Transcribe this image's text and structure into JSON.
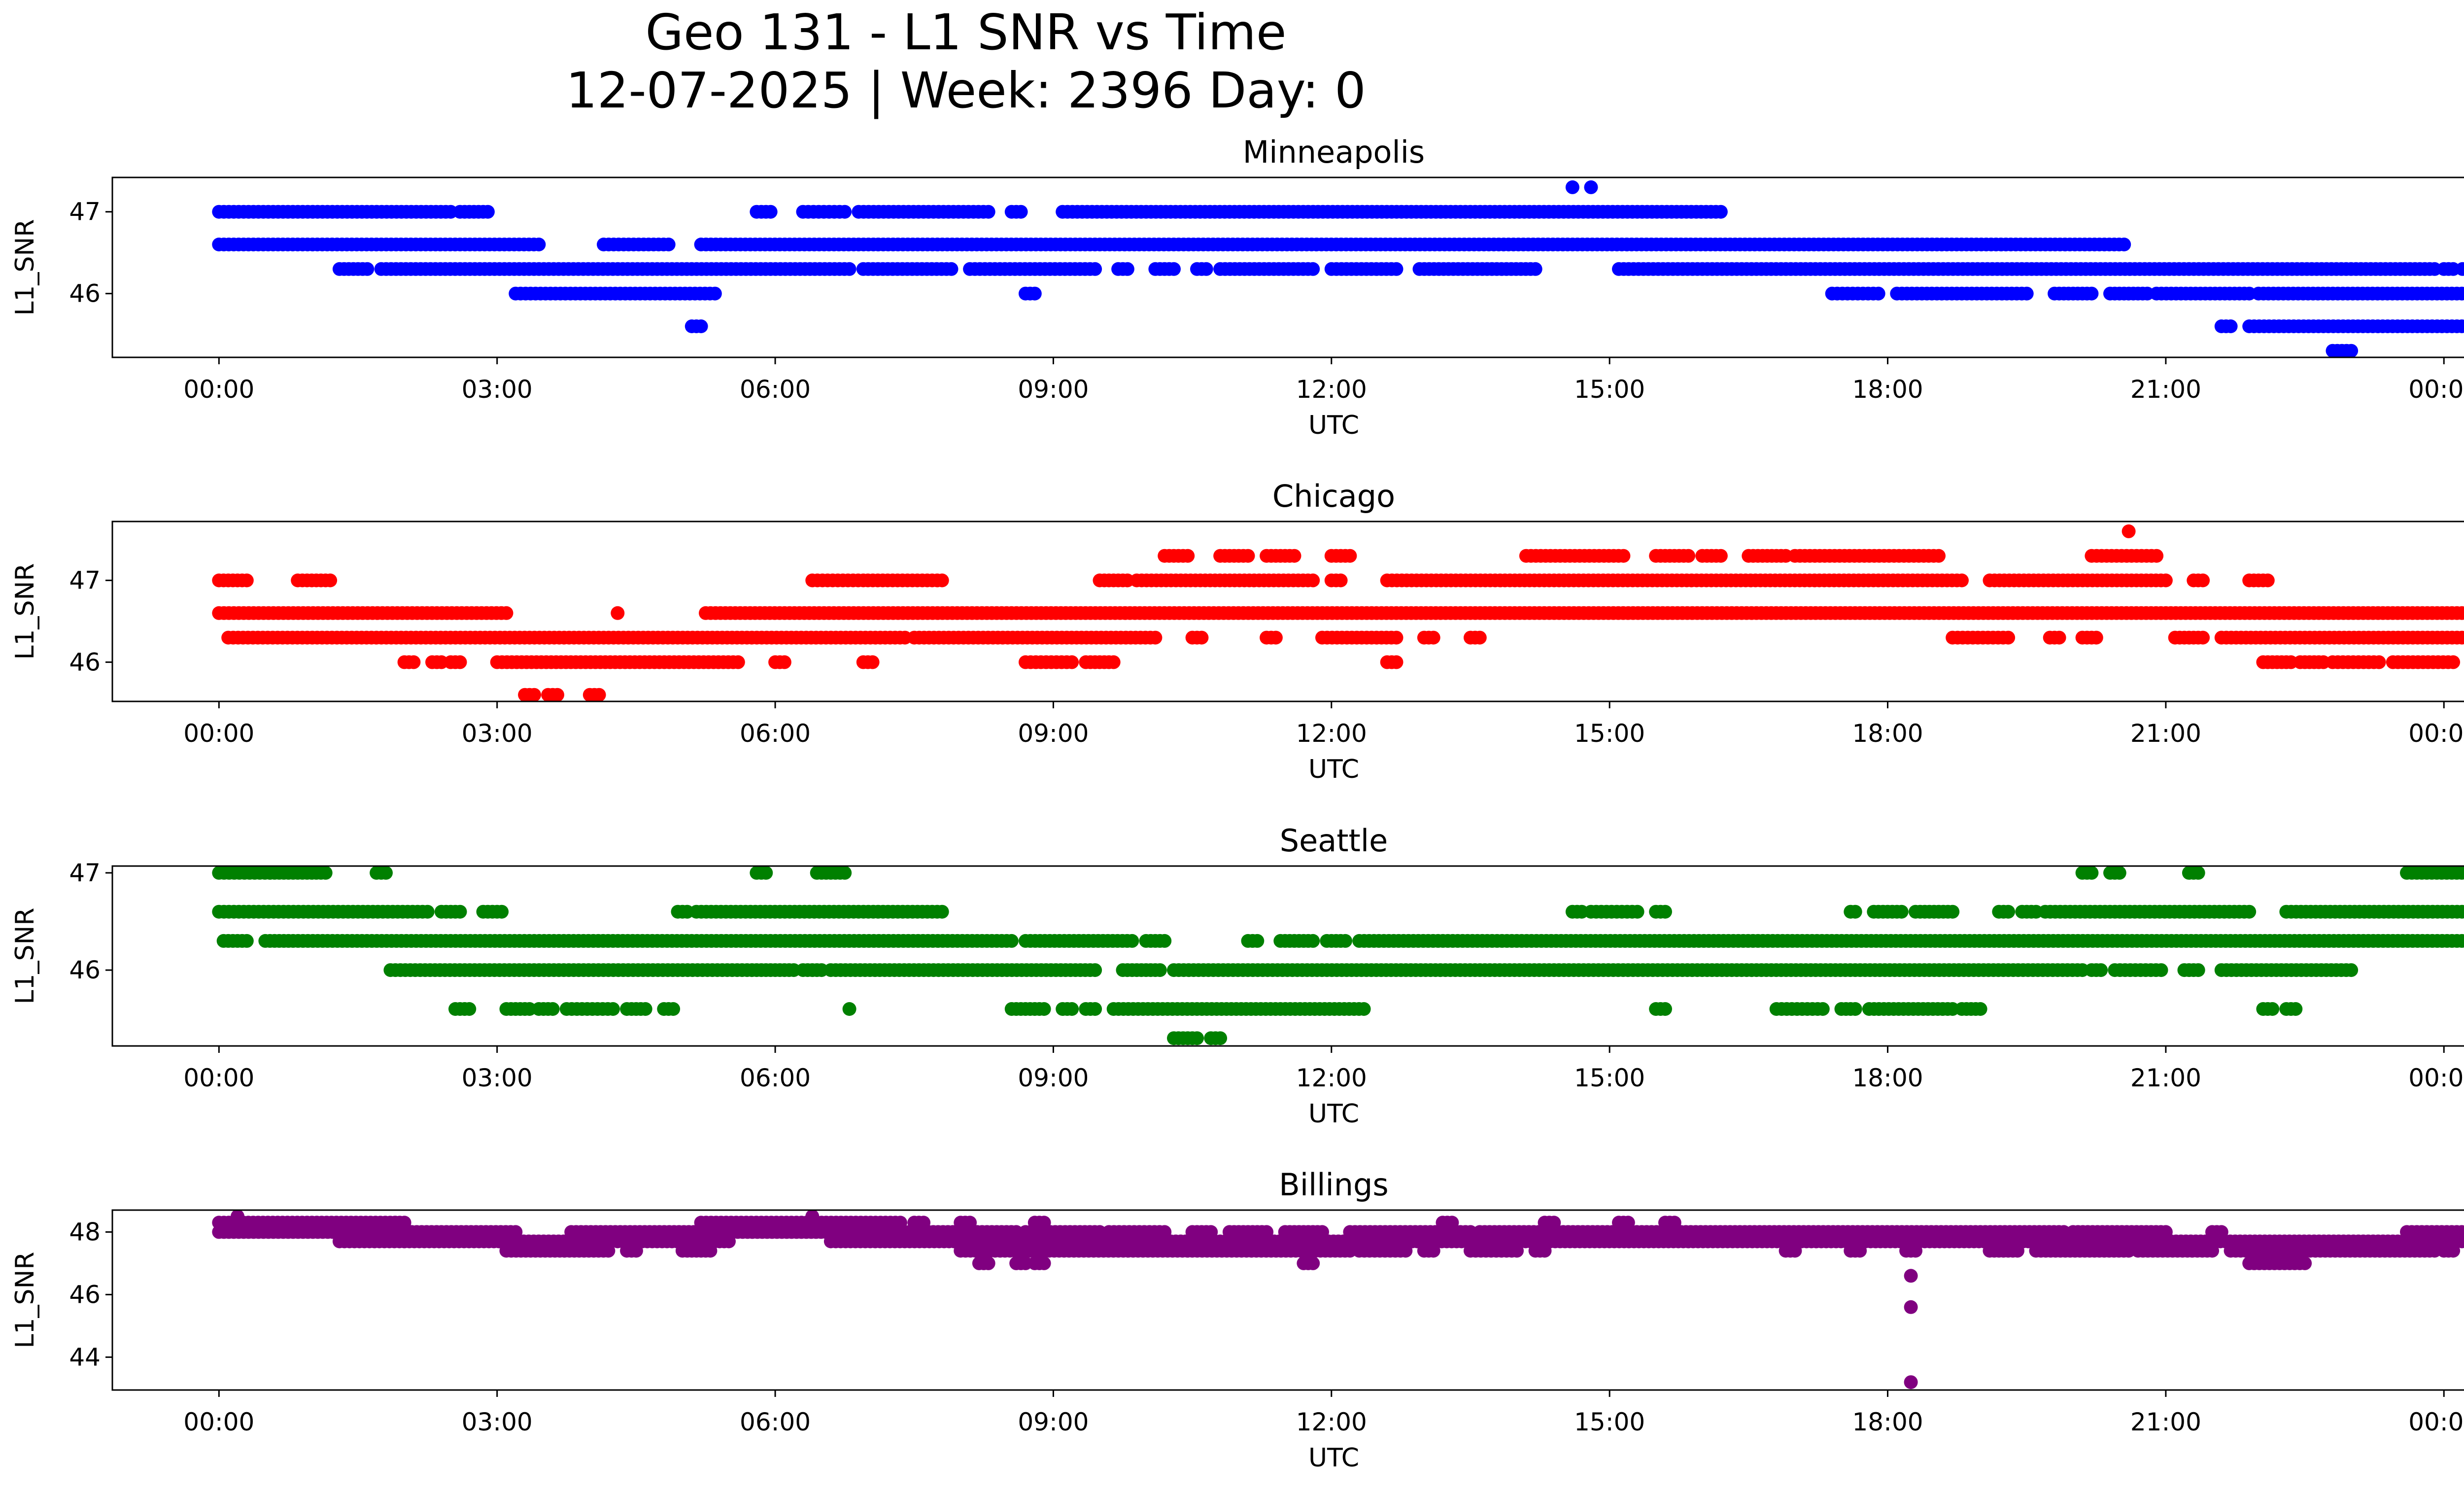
{
  "figure": {
    "title_line1": "Geo 131 - L1 SNR vs Time",
    "title_line2": "12-07-2025 | Week: 2396 Day: 0"
  },
  "chart_data": [
    {
      "type": "scatter",
      "title": "Minneapolis",
      "xlabel": "UTC",
      "ylabel": "L1_SNR",
      "color": "#0000ff",
      "x_tick_labels": [
        "00:00",
        "03:00",
        "06:00",
        "09:00",
        "12:00",
        "15:00",
        "18:00",
        "21:00",
        "00:00"
      ],
      "x_range_hours": [
        -1.15,
        25.2
      ],
      "yticks": [
        46,
        47
      ],
      "ylim": [
        45.22,
        47.42
      ],
      "bands": [
        {
          "y": 47.0,
          "segments": [
            [
              0.0,
              2.5
            ],
            [
              2.6,
              2.9
            ],
            [
              5.8,
              5.95
            ],
            [
              6.3,
              6.75
            ],
            [
              6.9,
              8.3
            ],
            [
              8.55,
              8.65
            ],
            [
              9.1,
              16.2
            ]
          ]
        },
        {
          "y": 46.6,
          "segments": [
            [
              0.0,
              3.45
            ],
            [
              4.15,
              4.85
            ],
            [
              5.2,
              20.55
            ]
          ]
        },
        {
          "y": 46.3,
          "segments": [
            [
              1.3,
              1.6
            ],
            [
              1.75,
              6.8
            ],
            [
              6.95,
              7.9
            ],
            [
              8.1,
              9.45
            ],
            [
              9.7,
              9.8
            ],
            [
              10.1,
              10.3
            ],
            [
              10.55,
              10.65
            ],
            [
              10.8,
              11.8
            ],
            [
              12.0,
              12.7
            ],
            [
              12.95,
              14.2
            ],
            [
              15.1,
              23.9
            ],
            [
              24.0,
              24.1
            ],
            [
              24.2,
              24.3
            ]
          ]
        },
        {
          "y": 46.0,
          "segments": [
            [
              3.2,
              5.35
            ],
            [
              8.7,
              8.8
            ],
            [
              17.4,
              17.9
            ],
            [
              18.1,
              19.5
            ],
            [
              19.8,
              20.2
            ],
            [
              20.4,
              20.8
            ],
            [
              20.9,
              21.9
            ],
            [
              22.0,
              24.3
            ]
          ]
        },
        {
          "y": 45.6,
          "segments": [
            [
              5.1,
              5.2
            ],
            [
              21.6,
              21.7
            ],
            [
              21.9,
              24.3
            ]
          ]
        },
        {
          "y": 45.3,
          "segments": [
            [
              22.8,
              23.0
            ]
          ]
        }
      ],
      "points": [
        {
          "x": 14.6,
          "y": 47.3
        },
        {
          "x": 14.8,
          "y": 47.3
        }
      ]
    },
    {
      "type": "scatter",
      "title": "Chicago",
      "xlabel": "UTC",
      "ylabel": "L1_SNR",
      "color": "#ff0000",
      "x_tick_labels": [
        "00:00",
        "03:00",
        "06:00",
        "09:00",
        "12:00",
        "15:00",
        "18:00",
        "21:00",
        "00:00"
      ],
      "x_range_hours": [
        -1.15,
        25.2
      ],
      "yticks": [
        46,
        47
      ],
      "ylim": [
        45.52,
        47.72
      ],
      "bands": [
        {
          "y": 47.3,
          "segments": [
            [
              10.2,
              10.45
            ],
            [
              10.8,
              11.1
            ],
            [
              11.3,
              11.6
            ],
            [
              12.0,
              12.2
            ],
            [
              14.1,
              15.15
            ],
            [
              15.5,
              15.85
            ],
            [
              16.0,
              16.2
            ],
            [
              16.5,
              16.9
            ],
            [
              17.0,
              18.55
            ],
            [
              20.2,
              20.9
            ]
          ]
        },
        {
          "y": 47.0,
          "segments": [
            [
              0.0,
              0.3
            ],
            [
              0.85,
              1.2
            ],
            [
              6.4,
              6.95
            ],
            [
              7.0,
              7.8
            ],
            [
              9.5,
              9.8
            ],
            [
              9.9,
              11.8
            ],
            [
              12.0,
              12.1
            ],
            [
              12.6,
              18.8
            ],
            [
              19.1,
              21.0
            ],
            [
              21.3,
              21.4
            ],
            [
              21.9,
              22.1
            ]
          ]
        },
        {
          "y": 46.6,
          "segments": [
            [
              0.0,
              3.1
            ],
            [
              5.25,
              24.3
            ]
          ]
        },
        {
          "y": 46.3,
          "segments": [
            [
              0.1,
              7.4
            ],
            [
              7.5,
              10.1
            ],
            [
              10.5,
              10.6
            ],
            [
              11.3,
              11.4
            ],
            [
              11.9,
              12.7
            ],
            [
              13.0,
              13.1
            ],
            [
              13.5,
              13.6
            ],
            [
              18.7,
              19.3
            ],
            [
              19.75,
              19.85
            ],
            [
              20.1,
              20.25
            ],
            [
              21.1,
              21.4
            ],
            [
              21.6,
              24.3
            ]
          ]
        },
        {
          "y": 46.0,
          "segments": [
            [
              2.0,
              2.1
            ],
            [
              2.3,
              2.4
            ],
            [
              2.5,
              2.6
            ],
            [
              3.0,
              5.6
            ],
            [
              6.0,
              6.1
            ],
            [
              6.95,
              7.05
            ],
            [
              8.7,
              9.2
            ],
            [
              9.35,
              9.65
            ],
            [
              12.6,
              12.7
            ],
            [
              22.05,
              22.35
            ],
            [
              22.45,
              22.7
            ],
            [
              22.8,
              23.3
            ],
            [
              23.45,
              24.1
            ]
          ]
        },
        {
          "y": 45.6,
          "segments": [
            [
              3.3,
              3.4
            ],
            [
              3.55,
              3.65
            ],
            [
              4.0,
              4.1
            ]
          ]
        }
      ],
      "points": [
        {
          "x": 4.3,
          "y": 46.6
        },
        {
          "x": 20.6,
          "y": 47.6
        }
      ]
    },
    {
      "type": "scatter",
      "title": "Seattle",
      "xlabel": "UTC",
      "ylabel": "L1_SNR",
      "color": "#008000",
      "x_tick_labels": [
        "00:00",
        "03:00",
        "06:00",
        "09:00",
        "12:00",
        "15:00",
        "18:00",
        "21:00",
        "00:00"
      ],
      "x_range_hours": [
        -1.15,
        25.2
      ],
      "yticks": [
        46,
        47
      ],
      "ylim": [
        45.22,
        47.07
      ],
      "bands": [
        {
          "y": 47.0,
          "segments": [
            [
              0.0,
              0.55
            ],
            [
              0.55,
              0.85
            ],
            [
              0.9,
              1.15
            ],
            [
              1.7,
              1.8
            ],
            [
              5.8,
              5.9
            ],
            [
              6.45,
              6.75
            ],
            [
              20.1,
              20.2
            ],
            [
              20.4,
              20.5
            ],
            [
              21.25,
              21.35
            ],
            [
              23.6,
              24.3
            ]
          ]
        },
        {
          "y": 46.6,
          "segments": [
            [
              0.0,
              2.25
            ],
            [
              2.4,
              2.6
            ],
            [
              2.85,
              3.05
            ],
            [
              4.95,
              5.05
            ],
            [
              5.15,
              7.8
            ],
            [
              14.6,
              14.7
            ],
            [
              14.8,
              15.3
            ],
            [
              15.5,
              15.6
            ],
            [
              17.6,
              17.65
            ],
            [
              17.85,
              18.15
            ],
            [
              18.3,
              18.7
            ],
            [
              19.2,
              19.3
            ],
            [
              19.45,
              19.6
            ],
            [
              19.7,
              21.9
            ],
            [
              22.3,
              24.3
            ]
          ]
        },
        {
          "y": 46.3,
          "segments": [
            [
              0.05,
              0.3
            ],
            [
              0.5,
              0.75
            ],
            [
              0.8,
              8.55
            ],
            [
              8.7,
              9.85
            ],
            [
              10.0,
              10.2
            ],
            [
              11.1,
              11.2
            ],
            [
              11.45,
              11.8
            ],
            [
              11.95,
              12.15
            ],
            [
              12.3,
              24.3
            ]
          ]
        },
        {
          "y": 46.0,
          "segments": [
            [
              1.85,
              5.75
            ],
            [
              5.8,
              6.2
            ],
            [
              6.3,
              6.5
            ],
            [
              6.6,
              9.45
            ],
            [
              9.75,
              10.15
            ],
            [
              10.3,
              20.1
            ],
            [
              20.2,
              20.3
            ],
            [
              20.45,
              20.95
            ],
            [
              21.2,
              21.35
            ],
            [
              21.6,
              23.0
            ]
          ]
        },
        {
          "y": 45.6,
          "segments": [
            [
              2.55,
              2.7
            ],
            [
              3.1,
              3.35
            ],
            [
              3.45,
              3.6
            ],
            [
              3.75,
              4.25
            ],
            [
              4.4,
              4.6
            ],
            [
              4.8,
              4.9
            ],
            [
              8.55,
              8.9
            ],
            [
              9.1,
              9.2
            ],
            [
              9.35,
              9.45
            ],
            [
              9.65,
              12.35
            ],
            [
              15.5,
              15.6
            ],
            [
              16.8,
              17.3
            ],
            [
              17.5,
              17.65
            ],
            [
              17.8,
              18.7
            ],
            [
              18.8,
              19.0
            ],
            [
              22.05,
              22.15
            ],
            [
              22.3,
              22.4
            ]
          ]
        },
        {
          "y": 45.3,
          "segments": [
            [
              10.3,
              10.55
            ],
            [
              10.7,
              10.8
            ]
          ]
        }
      ],
      "points": [
        {
          "x": 6.8,
          "y": 45.6
        }
      ]
    },
    {
      "type": "scatter",
      "title": "Billings",
      "xlabel": "UTC",
      "ylabel": "L1_SNR",
      "color": "#800080",
      "x_tick_labels": [
        "00:00",
        "03:00",
        "06:00",
        "09:00",
        "12:00",
        "15:00",
        "18:00",
        "21:00",
        "00:00"
      ],
      "x_range_hours": [
        -1.15,
        25.2
      ],
      "yticks": [
        44,
        46,
        48
      ],
      "ylim": [
        42.95,
        48.7
      ],
      "bands": [
        {
          "y": 48.3,
          "segments": [
            [
              0.0,
              1.9
            ],
            [
              1.9,
              2.0
            ],
            [
              5.2,
              6.5
            ],
            [
              6.55,
              7.35
            ],
            [
              7.5,
              7.6
            ],
            [
              8.0,
              8.1
            ],
            [
              8.8,
              8.9
            ],
            [
              13.2,
              13.3
            ],
            [
              14.3,
              14.4
            ],
            [
              15.1,
              15.2
            ],
            [
              15.6,
              15.7
            ]
          ]
        },
        {
          "y": 48.0,
          "segments": [
            [
              0.0,
              3.2
            ],
            [
              3.8,
              6.6
            ],
            [
              6.6,
              7.5
            ],
            [
              7.6,
              8.6
            ],
            [
              8.7,
              9.5
            ],
            [
              9.6,
              10.2
            ],
            [
              10.5,
              10.7
            ],
            [
              10.9,
              11.3
            ],
            [
              11.5,
              11.9
            ],
            [
              12.2,
              13.5
            ],
            [
              13.6,
              19.9
            ],
            [
              20.0,
              21.0
            ],
            [
              21.5,
              21.6
            ],
            [
              23.6,
              24.3
            ]
          ]
        },
        {
          "y": 47.7,
          "segments": [
            [
              1.3,
              2.0
            ],
            [
              2.0,
              4.2
            ],
            [
              4.3,
              5.1
            ],
            [
              5.2,
              5.5
            ],
            [
              6.6,
              24.3
            ]
          ]
        },
        {
          "y": 47.4,
          "segments": [
            [
              3.1,
              4.2
            ],
            [
              4.4,
              4.5
            ],
            [
              5.0,
              5.3
            ],
            [
              8.0,
              12.2
            ],
            [
              12.3,
              12.8
            ],
            [
              13.0,
              13.1
            ],
            [
              13.5,
              14.0
            ],
            [
              14.2,
              14.3
            ],
            [
              16.9,
              17.0
            ],
            [
              17.6,
              17.7
            ],
            [
              18.2,
              18.3
            ],
            [
              19.1,
              19.4
            ],
            [
              19.6,
              20.6
            ],
            [
              20.7,
              21.5
            ],
            [
              21.7,
              23.9
            ],
            [
              24.0,
              24.1
            ]
          ]
        },
        {
          "y": 47.0,
          "segments": [
            [
              8.2,
              8.3
            ],
            [
              8.6,
              8.7
            ],
            [
              8.8,
              8.9
            ],
            [
              11.7,
              11.8
            ],
            [
              21.9,
              22.5
            ]
          ]
        }
      ],
      "points": [
        {
          "x": 18.25,
          "y": 46.6
        },
        {
          "x": 18.25,
          "y": 45.6
        },
        {
          "x": 18.25,
          "y": 43.2
        },
        {
          "x": 0.2,
          "y": 48.5
        },
        {
          "x": 6.4,
          "y": 48.5
        }
      ]
    }
  ]
}
